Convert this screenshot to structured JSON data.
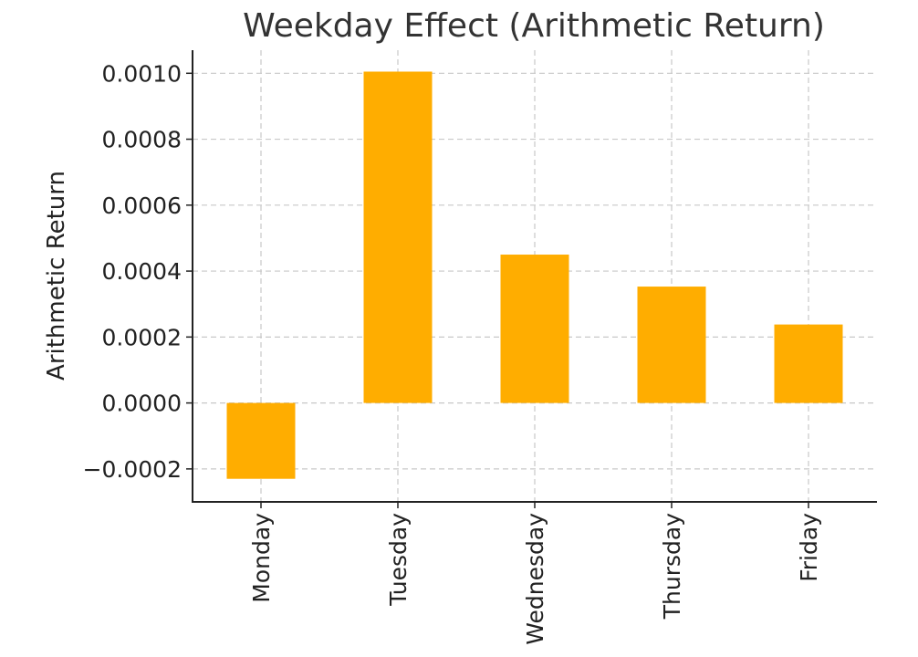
{
  "chart_data": {
    "type": "bar",
    "title": "Weekday Effect (Arithmetic Return)",
    "xlabel": "",
    "ylabel": "Arithmetic Return",
    "categories": [
      "Monday",
      "Tuesday",
      "Wednesday",
      "Thursday",
      "Friday"
    ],
    "values": [
      -0.00023,
      0.001005,
      0.00045,
      0.000353,
      0.000238
    ],
    "ylim": [
      -0.0003,
      0.00107
    ],
    "yticks": [
      -0.0002,
      0.0,
      0.0002,
      0.0004,
      0.0006,
      0.0008,
      0.001
    ],
    "ytick_labels": [
      "−0.0002",
      "0.0000",
      "0.0002",
      "0.0004",
      "0.0006",
      "0.0008",
      "0.0010"
    ],
    "grid": true,
    "bar_color": "#ffad00"
  }
}
